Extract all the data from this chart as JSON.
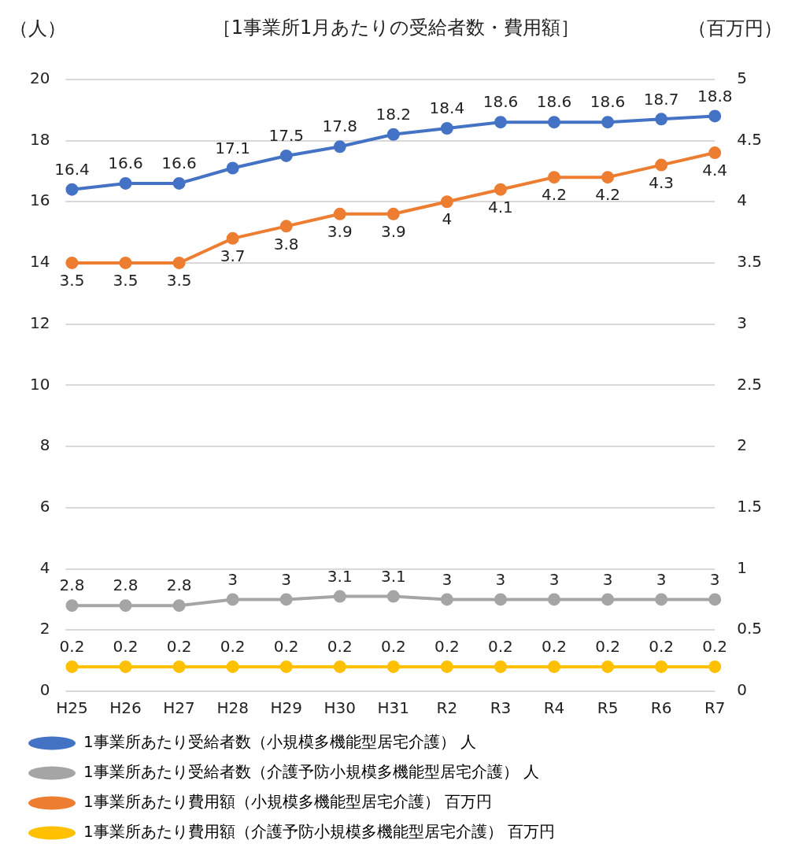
{
  "chart_data": {
    "type": "line",
    "title": "［1事業所1月あたりの受給者数・費用額］",
    "ylabel": "（人）",
    "y2label": "（百万円）",
    "categories": [
      "H25",
      "H26",
      "H27",
      "H28",
      "H29",
      "H30",
      "H31",
      "R2",
      "R3",
      "R4",
      "R5",
      "R6",
      "R7"
    ],
    "series": [
      {
        "name": "1事業所あたり受給者数（小規模多機能型居宅介護） 人",
        "color": "#4472c4",
        "values": [
          16.4,
          16.6,
          16.6,
          17.1,
          17.5,
          17.8,
          18.2,
          18.4,
          18.6,
          18.6,
          18.6,
          18.7,
          18.8
        ]
      },
      {
        "name": "1事業所あたり受給者数（介護予防小規模多機能型居宅介護） 人",
        "color": "#a5a5a5",
        "values": [
          2.8,
          2.8,
          2.8,
          3,
          3,
          3.1,
          3.1,
          3,
          3,
          3,
          3,
          3,
          3
        ]
      },
      {
        "name": "1事業所あたり費用額（小規模多機能型居宅介護） 百万円",
        "color": "#ed7d31",
        "axis": "y2",
        "values": [
          3.5,
          3.5,
          3.5,
          3.7,
          3.8,
          3.9,
          3.9,
          4,
          4.1,
          4.2,
          4.2,
          4.3,
          4.4
        ]
      },
      {
        "name": "1事業所あたり費用額（介護予防小規模多機能型居宅介護） 百万円",
        "color": "#ffc000",
        "axis": "y2",
        "values": [
          0.2,
          0.2,
          0.2,
          0.2,
          0.2,
          0.2,
          0.2,
          0.2,
          0.2,
          0.2,
          0.2,
          0.2,
          0.2
        ]
      }
    ],
    "ylim": [
      0,
      20
    ],
    "yticks": [
      0,
      2,
      4,
      6,
      8,
      10,
      12,
      14,
      16,
      18,
      20
    ],
    "y2lim": [
      0,
      5
    ],
    "y2ticks": [
      0,
      0.5,
      1,
      1.5,
      2,
      2.5,
      3,
      3.5,
      4,
      4.5,
      5
    ],
    "grid": "y",
    "legend": "bottom",
    "marker": "circle",
    "line_style": "solid",
    "data_labels": true
  }
}
